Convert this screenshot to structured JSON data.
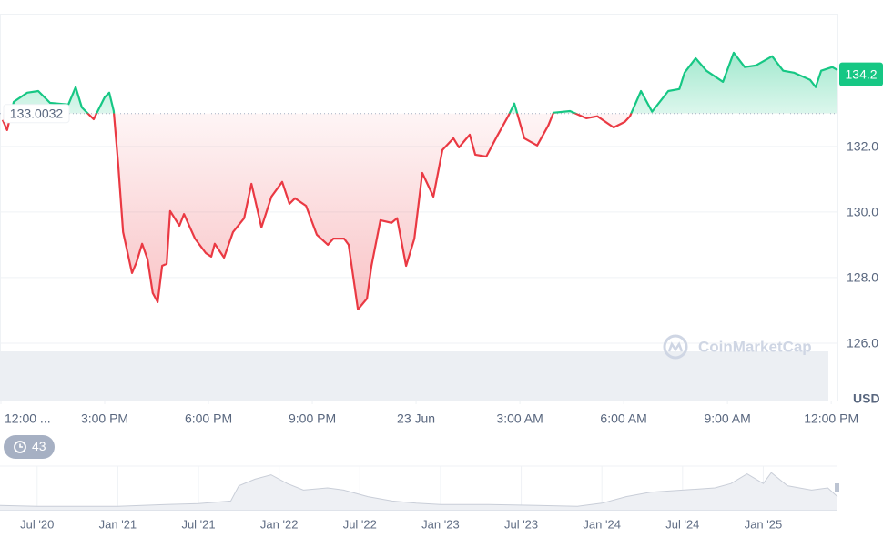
{
  "chart_data": [
    {
      "type": "line",
      "x": [
        0.05,
        0.18,
        0.37,
        0.76,
        1.08,
        1.42,
        1.95,
        2.16,
        2.34,
        2.68,
        3.0,
        3.13,
        3.26,
        3.39,
        3.53,
        3.79,
        3.92,
        4.08,
        4.24,
        4.39,
        4.53,
        4.66,
        4.79,
        4.89,
        5.16,
        5.29,
        5.61,
        5.92,
        6.08,
        6.18,
        6.45,
        6.71,
        7.03,
        7.24,
        7.53,
        7.82,
        8.13,
        8.34,
        8.5,
        8.82,
        9.13,
        9.45,
        9.61,
        9.92,
        10.05,
        10.32,
        10.58,
        10.71,
        10.97,
        11.29,
        11.45,
        11.71,
        11.95,
        12.18,
        12.5,
        12.76,
        13.08,
        13.24,
        13.55,
        13.71,
        14.03,
        14.34,
        14.66,
        14.84,
        15.13,
        15.5,
        15.82,
        15.97,
        16.45,
        16.92,
        17.24,
        17.71,
        18.03,
        18.18,
        18.5,
        18.82,
        19.29,
        19.61,
        19.76,
        20.08,
        20.39,
        20.87,
        21.18,
        21.5,
        21.82,
        22.29,
        22.61,
        22.92,
        23.39,
        23.55,
        23.71,
        24.03,
        24.18
      ],
      "values": [
        132.81,
        132.5,
        133.36,
        133.64,
        133.69,
        133.33,
        133.28,
        133.81,
        133.19,
        132.83,
        133.5,
        133.64,
        133.08,
        131.47,
        129.39,
        128.14,
        128.47,
        129.03,
        128.56,
        127.53,
        127.25,
        128.36,
        128.42,
        130.03,
        129.58,
        129.94,
        129.19,
        128.75,
        128.64,
        129.03,
        128.61,
        129.39,
        129.81,
        130.86,
        129.53,
        130.47,
        130.92,
        130.25,
        130.42,
        130.19,
        129.31,
        129.0,
        129.19,
        129.19,
        129.0,
        127.03,
        127.36,
        128.36,
        129.75,
        129.67,
        129.81,
        128.36,
        129.19,
        131.19,
        130.47,
        131.89,
        132.25,
        131.97,
        132.36,
        131.75,
        131.69,
        132.31,
        132.92,
        133.31,
        132.25,
        132.03,
        132.64,
        133.03,
        133.08,
        132.86,
        132.92,
        132.58,
        132.75,
        132.92,
        133.69,
        133.06,
        133.69,
        133.75,
        134.25,
        134.69,
        134.31,
        133.97,
        134.86,
        134.42,
        134.47,
        134.75,
        134.31,
        134.25,
        134.03,
        133.81,
        134.31,
        134.42,
        134.33
      ],
      "baseline": 133.0032,
      "current_price": 134.2,
      "up_color": "#16c784",
      "down_color": "#ea3943",
      "xlim": [
        0,
        24.18
      ],
      "xticks": [
        {
          "value": 0,
          "label": "12:00 ..."
        },
        {
          "value": 3,
          "label": "3:00 PM"
        },
        {
          "value": 6,
          "label": "6:00 PM"
        },
        {
          "value": 9,
          "label": "9:00 PM"
        },
        {
          "value": 12,
          "label": "23 Jun"
        },
        {
          "value": 15,
          "label": "3:00 AM"
        },
        {
          "value": 18,
          "label": "6:00 AM"
        },
        {
          "value": 21,
          "label": "9:00 AM"
        },
        {
          "value": 24,
          "label": "12:00 PM"
        }
      ],
      "ylim": [
        124.25,
        136.05
      ],
      "yticks": [
        {
          "value": 126,
          "label": "126.0"
        },
        {
          "value": 128,
          "label": "128.0"
        },
        {
          "value": 130,
          "label": "130.0"
        },
        {
          "value": 132,
          "label": "132.0"
        }
      ],
      "y_axis_label": "USD",
      "grid": true
    },
    {
      "type": "area",
      "x": [
        2020.27,
        2020.5,
        2021.0,
        2021.3,
        2021.5,
        2021.7,
        2021.75,
        2021.85,
        2021.95,
        2022.05,
        2022.15,
        2022.3,
        2022.4,
        2022.55,
        2022.7,
        2022.85,
        2023.0,
        2023.3,
        2023.6,
        2023.85,
        2024.0,
        2024.15,
        2024.3,
        2024.5,
        2024.7,
        2024.8,
        2024.9,
        2025.0,
        2025.05,
        2025.15,
        2025.3,
        2025.4,
        2025.46
      ],
      "values": [
        10,
        8,
        8,
        12,
        14,
        20,
        55,
        70,
        80,
        60,
        45,
        50,
        45,
        30,
        20,
        15,
        12,
        12,
        10,
        8,
        15,
        30,
        40,
        45,
        50,
        60,
        82,
        60,
        85,
        55,
        45,
        50,
        30
      ],
      "color": "#c9ced8",
      "xlim": [
        2020.27,
        2025.46
      ],
      "xticks": [
        {
          "value": 2020.5,
          "label": "Jul '20"
        },
        {
          "value": 2021.0,
          "label": "Jan '21"
        },
        {
          "value": 2021.5,
          "label": "Jul '21"
        },
        {
          "value": 2022.0,
          "label": "Jan '22"
        },
        {
          "value": 2022.5,
          "label": "Jul '22"
        },
        {
          "value": 2023.0,
          "label": "Jan '23"
        },
        {
          "value": 2023.5,
          "label": "Jul '23"
        },
        {
          "value": 2024.0,
          "label": "Jan '24"
        },
        {
          "value": 2024.5,
          "label": "Jul '24"
        },
        {
          "value": 2025.0,
          "label": "Jan '25"
        }
      ],
      "ylim": [
        0,
        100
      ]
    }
  ],
  "watermark": "CoinMarketCap",
  "history_count": 43
}
